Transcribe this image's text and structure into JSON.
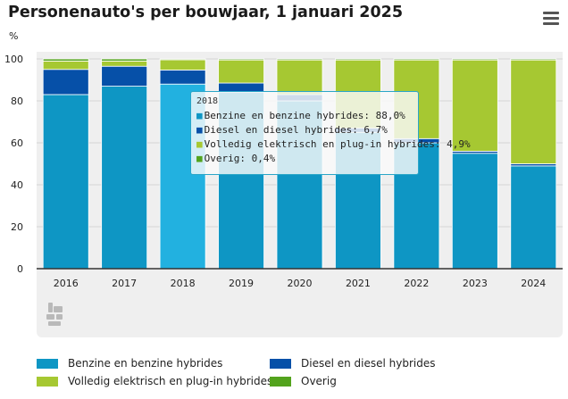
{
  "title": "Personenauto's per bouwjaar, 1 januari 2025",
  "unit_label": "%",
  "menu_icon": "hamburger-menu-icon",
  "logo_icon": "cbs-logo-icon",
  "chart_data": {
    "type": "bar",
    "stacked": true,
    "title": "Personenauto's per bouwjaar, 1 januari 2025",
    "ylabel": "%",
    "xlabel": "",
    "ylim": [
      0,
      100
    ],
    "yticks": [
      0,
      20,
      40,
      60,
      80,
      100
    ],
    "grid": true,
    "legend_position": "bottom",
    "categories": [
      "2016",
      "2017",
      "2018",
      "2019",
      "2020",
      "2021",
      "2022",
      "2023",
      "2024"
    ],
    "series": [
      {
        "name": "Benzine en benzine hybrides",
        "color": "#0e96c4",
        "values": [
          83.0,
          87.0,
          88.0,
          84.0,
          80.0,
          65.0,
          60.0,
          55.0,
          49.0
        ]
      },
      {
        "name": "Diesel en diesel hybrides",
        "color": "#0650a8",
        "values": [
          12.0,
          9.5,
          6.7,
          4.5,
          3.0,
          2.0,
          2.0,
          1.0,
          1.0
        ]
      },
      {
        "name": "Volledig elektrisch en plug-in hybrides",
        "color": "#a6c832",
        "values": [
          4.0,
          2.5,
          4.9,
          11.0,
          16.5,
          32.5,
          37.5,
          43.5,
          49.5
        ]
      },
      {
        "name": "Overig",
        "color": "#53a31d",
        "values": [
          1.0,
          1.0,
          0.4,
          0.5,
          0.5,
          0.5,
          0.5,
          0.5,
          0.5
        ]
      }
    ],
    "highlighted_category": "2018",
    "highlight_color": "#22b1e0",
    "tooltip": {
      "header": "2018",
      "rows": [
        {
          "text": "Benzine en benzine hybrides: 88,0%",
          "color": "#0e96c4"
        },
        {
          "text": "Diesel en diesel hybrides: 6,7%",
          "color": "#0650a8"
        },
        {
          "text": "Volledig elektrisch en plug-in hybrides: 4,9%",
          "color": "#a6c832"
        },
        {
          "text": "Overig: 0,4%",
          "color": "#53a31d"
        }
      ]
    }
  }
}
